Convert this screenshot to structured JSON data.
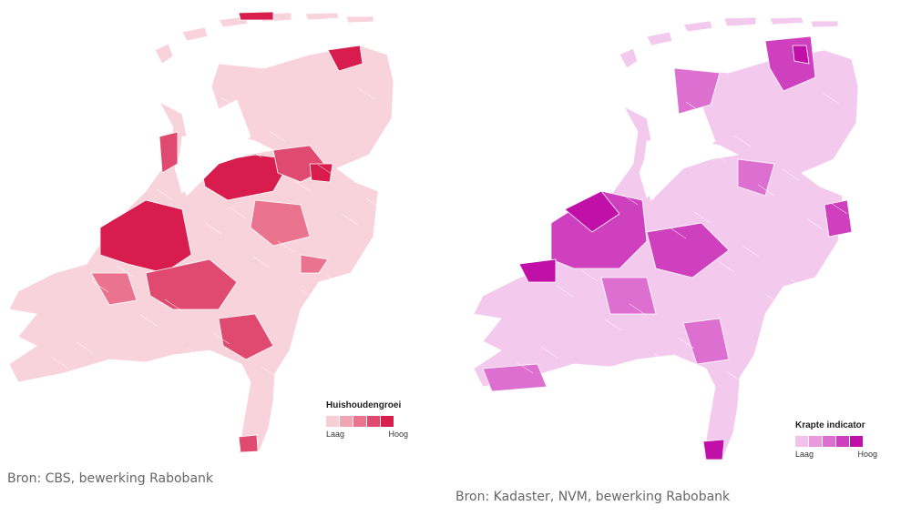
{
  "maps": [
    {
      "legend_title": "Huishoudengroei",
      "low_label": "Laag",
      "high_label": "Hoog",
      "colors": [
        "#f7cdd6",
        "#f2a3b4",
        "#ea7490",
        "#e04a70",
        "#d81c4e"
      ],
      "base_color": "#f9d3db",
      "source": "Bron: CBS, bewerking Rabobank"
    },
    {
      "legend_title": "Krapte indicator",
      "low_label": "Laag",
      "high_label": "Hoog",
      "colors": [
        "#f2c2ec",
        "#e79ade",
        "#dc6fd0",
        "#cf40bf",
        "#c010a8"
      ],
      "base_color": "#f3c9ee",
      "source": "Bron: Kadaster, NVM, bewerking Rabobank"
    }
  ]
}
